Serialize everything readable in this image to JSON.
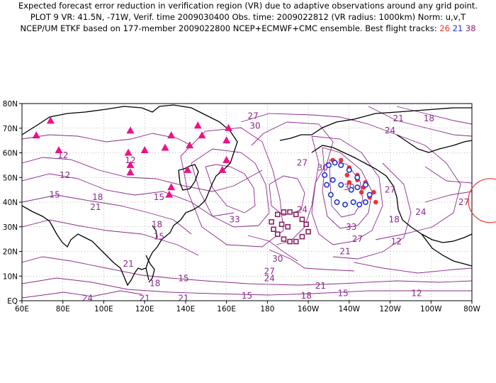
{
  "header": {
    "line1": "Expected forecast error reduction in verification region (VR) due to adaptive observations around any grid point.",
    "line2": "PLOT 9 VR: 41.5N, -71W, Verif. time 2009030400 Obs. time: 2009022812 (VR radius: 1000km) Norm: u,v,T",
    "line3_prefix": "NCEP/UM ETKF based on 177-member 2009022800 NCEP+ECMWF+CMC ensemble. Best flight tracks:",
    "tracks": [
      "26",
      "21",
      "38"
    ]
  },
  "colors": {
    "contour": "#8a2a8a",
    "coast": "#000000",
    "grid": "#777777",
    "track_26": "#ee3333",
    "track_21": "#2233cc",
    "track_38": "#882266",
    "triangles": "#ee1188",
    "verification_circle": "#ee3333"
  },
  "map": {
    "lon_range": [
      60,
      280
    ],
    "lat_range": [
      0,
      80
    ],
    "lon_ticks": [
      "60E",
      "80E",
      "100E",
      "120E",
      "140E",
      "160E",
      "180",
      "160W",
      "140W",
      "120W",
      "100W",
      "80W"
    ],
    "lat_ticks": [
      "EQ",
      "10N",
      "20N",
      "30N",
      "40N",
      "50N",
      "60N",
      "70N",
      "80N"
    ],
    "verification_center": {
      "lat": 41.5,
      "lon": -71
    }
  },
  "contour_labels": [
    {
      "text": "27",
      "lon": 173,
      "lat": 75
    },
    {
      "text": "30",
      "lon": 174,
      "lat": 71
    },
    {
      "text": "21",
      "lon": 244,
      "lat": 74
    },
    {
      "text": "24",
      "lon": 240,
      "lat": 69
    },
    {
      "text": "18",
      "lon": 259,
      "lat": 74
    },
    {
      "text": "12",
      "lon": 80,
      "lat": 59
    },
    {
      "text": "12",
      "lon": 81,
      "lat": 51
    },
    {
      "text": "15",
      "lon": 76,
      "lat": 43
    },
    {
      "text": "18",
      "lon": 97,
      "lat": 42
    },
    {
      "text": "21",
      "lon": 96,
      "lat": 38
    },
    {
      "text": "12",
      "lon": 113,
      "lat": 57
    },
    {
      "text": "15",
      "lon": 127,
      "lat": 42
    },
    {
      "text": "18",
      "lon": 126,
      "lat": 31
    },
    {
      "text": "15",
      "lon": 127,
      "lat": 26
    },
    {
      "text": "33",
      "lon": 164,
      "lat": 33
    },
    {
      "text": "24",
      "lon": 197,
      "lat": 37
    },
    {
      "text": "27",
      "lon": 197,
      "lat": 56
    },
    {
      "text": "30",
      "lon": 207,
      "lat": 54
    },
    {
      "text": "30",
      "lon": 220,
      "lat": 46
    },
    {
      "text": "27",
      "lon": 240,
      "lat": 45
    },
    {
      "text": "24",
      "lon": 255,
      "lat": 36
    },
    {
      "text": "27",
      "lon": 276,
      "lat": 40
    },
    {
      "text": "18",
      "lon": 242,
      "lat": 33
    },
    {
      "text": "12",
      "lon": 243,
      "lat": 24
    },
    {
      "text": "33",
      "lon": 221,
      "lat": 30
    },
    {
      "text": "27",
      "lon": 224,
      "lat": 25
    },
    {
      "text": "21",
      "lon": 218,
      "lat": 20
    },
    {
      "text": "30",
      "lon": 185,
      "lat": 17
    },
    {
      "text": "27",
      "lon": 181,
      "lat": 12
    },
    {
      "text": "24",
      "lon": 181,
      "lat": 9
    },
    {
      "text": "21",
      "lon": 112,
      "lat": 15
    },
    {
      "text": "18",
      "lon": 125,
      "lat": 7
    },
    {
      "text": "15",
      "lon": 139,
      "lat": 9
    },
    {
      "text": "21",
      "lon": 120,
      "lat": 1
    },
    {
      "text": "21",
      "lon": 139,
      "lat": 1
    },
    {
      "text": "24",
      "lon": 92,
      "lat": 1
    },
    {
      "text": "15",
      "lon": 170,
      "lat": 2
    },
    {
      "text": "18",
      "lon": 199,
      "lat": 2
    },
    {
      "text": "21",
      "lon": 206,
      "lat": 6
    },
    {
      "text": "15",
      "lon": 217,
      "lat": 3
    },
    {
      "text": "12",
      "lon": 253,
      "lat": 3
    }
  ],
  "tracks_data": {
    "track_26": [
      {
        "lon": 212,
        "lat": 57
      },
      {
        "lon": 216,
        "lat": 57
      },
      {
        "lon": 220,
        "lat": 54
      },
      {
        "lon": 224,
        "lat": 51
      },
      {
        "lon": 228,
        "lat": 48
      },
      {
        "lon": 232,
        "lat": 44
      },
      {
        "lon": 233,
        "lat": 40
      },
      {
        "lon": 230,
        "lat": 42
      },
      {
        "lon": 227,
        "lat": 46
      },
      {
        "lon": 224,
        "lat": 49
      },
      {
        "lon": 219,
        "lat": 51
      },
      {
        "lon": 216,
        "lat": 55
      },
      {
        "lon": 226,
        "lat": 44
      },
      {
        "lon": 220,
        "lat": 48
      }
    ],
    "track_21": [
      {
        "lon": 210,
        "lat": 55
      },
      {
        "lon": 208,
        "lat": 51
      },
      {
        "lon": 209,
        "lat": 47
      },
      {
        "lon": 211,
        "lat": 43
      },
      {
        "lon": 214,
        "lat": 40
      },
      {
        "lon": 218,
        "lat": 39
      },
      {
        "lon": 222,
        "lat": 40
      },
      {
        "lon": 225,
        "lat": 39
      },
      {
        "lon": 228,
        "lat": 40
      },
      {
        "lon": 230,
        "lat": 43
      },
      {
        "lon": 228,
        "lat": 47
      },
      {
        "lon": 224,
        "lat": 50
      },
      {
        "lon": 220,
        "lat": 53
      },
      {
        "lon": 216,
        "lat": 55
      },
      {
        "lon": 213,
        "lat": 56
      },
      {
        "lon": 212,
        "lat": 49
      },
      {
        "lon": 216,
        "lat": 47
      },
      {
        "lon": 221,
        "lat": 45
      },
      {
        "lon": 224,
        "lat": 46
      }
    ],
    "track_38": [
      {
        "lon": 182,
        "lat": 32
      },
      {
        "lon": 185,
        "lat": 35
      },
      {
        "lon": 188,
        "lat": 36
      },
      {
        "lon": 191,
        "lat": 36
      },
      {
        "lon": 194,
        "lat": 35
      },
      {
        "lon": 197,
        "lat": 33
      },
      {
        "lon": 199,
        "lat": 31
      },
      {
        "lon": 200,
        "lat": 28
      },
      {
        "lon": 197,
        "lat": 26
      },
      {
        "lon": 194,
        "lat": 24
      },
      {
        "lon": 191,
        "lat": 24
      },
      {
        "lon": 188,
        "lat": 25
      },
      {
        "lon": 185,
        "lat": 27
      },
      {
        "lon": 183,
        "lat": 29
      },
      {
        "lon": 190,
        "lat": 30
      },
      {
        "lon": 187,
        "lat": 31
      }
    ]
  },
  "triangles": [
    {
      "lon": 67,
      "lat": 67
    },
    {
      "lon": 74,
      "lat": 73
    },
    {
      "lon": 78,
      "lat": 61
    },
    {
      "lon": 113,
      "lat": 69
    },
    {
      "lon": 112,
      "lat": 60
    },
    {
      "lon": 113,
      "lat": 55
    },
    {
      "lon": 113,
      "lat": 52
    },
    {
      "lon": 120,
      "lat": 61
    },
    {
      "lon": 130,
      "lat": 62
    },
    {
      "lon": 133,
      "lat": 67
    },
    {
      "lon": 142,
      "lat": 63
    },
    {
      "lon": 146,
      "lat": 71
    },
    {
      "lon": 148,
      "lat": 67
    },
    {
      "lon": 161,
      "lat": 70
    },
    {
      "lon": 160,
      "lat": 65
    },
    {
      "lon": 160,
      "lat": 57
    },
    {
      "lon": 158,
      "lat": 53
    },
    {
      "lon": 141,
      "lat": 53
    },
    {
      "lon": 132,
      "lat": 43
    },
    {
      "lon": 133,
      "lat": 46
    }
  ]
}
